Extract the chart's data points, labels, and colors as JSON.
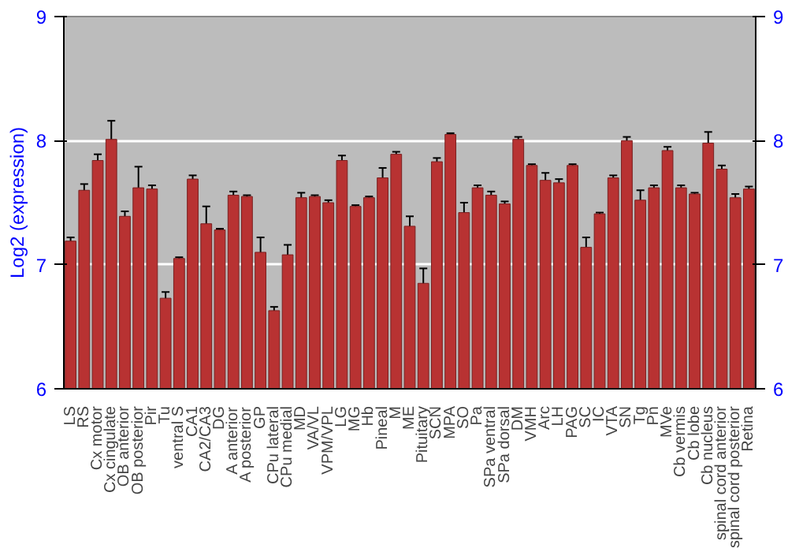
{
  "chart_data": {
    "type": "bar",
    "ylabel": "Log2 (expression)",
    "categories": [
      "LS",
      "RS",
      "Cx motor",
      "Cx cingulate",
      "OB anterior",
      "OB posterior",
      "Pir",
      "Tu",
      "ventral S",
      "CA1",
      "CA2/CA3",
      "DG",
      "A anterior",
      "A posterior",
      "GP",
      "CPu lateral",
      "CPu medial",
      "MD",
      "VA/VL",
      "VPM/VPL",
      "LG",
      "MG",
      "Hb",
      "Pineal",
      "M",
      "ME",
      "Pituitary",
      "SCN",
      "MPA",
      "SO",
      "Pa",
      "SPa ventral",
      "SPa dorsal",
      "DM",
      "VMH",
      "Arc",
      "LH",
      "PAG",
      "SC",
      "IC",
      "VTA",
      "SN",
      "Tg",
      "Pn",
      "MVe",
      "Cb vermis",
      "Cb lobe",
      "Cb nucleus",
      "spinal cord anterior",
      "spinal cord posterior",
      "Retina"
    ],
    "values": [
      7.19,
      7.6,
      7.84,
      8.01,
      7.39,
      7.62,
      7.61,
      6.73,
      7.05,
      7.69,
      7.33,
      7.28,
      7.56,
      7.55,
      7.1,
      6.63,
      7.08,
      7.54,
      7.55,
      7.5,
      7.84,
      7.47,
      7.54,
      7.7,
      7.89,
      7.31,
      6.85,
      7.83,
      8.05,
      7.42,
      7.62,
      7.56,
      7.49,
      8.01,
      7.8,
      7.68,
      7.66,
      7.8,
      7.14,
      7.41,
      7.7,
      8.0,
      7.52,
      7.62,
      7.92,
      7.62,
      7.57,
      7.98,
      7.77,
      7.54,
      7.61
    ],
    "errors": [
      0.03,
      0.05,
      0.05,
      0.15,
      0.04,
      0.17,
      0.03,
      0.05,
      0.01,
      0.03,
      0.14,
      0.01,
      0.03,
      0.01,
      0.12,
      0.03,
      0.08,
      0.04,
      0.01,
      0.02,
      0.04,
      0.01,
      0.01,
      0.08,
      0.02,
      0.08,
      0.12,
      0.03,
      0.01,
      0.08,
      0.02,
      0.03,
      0.02,
      0.02,
      0.01,
      0.06,
      0.03,
      0.01,
      0.08,
      0.01,
      0.02,
      0.03,
      0.08,
      0.02,
      0.03,
      0.02,
      0.01,
      0.09,
      0.03,
      0.03,
      0.02
    ],
    "color": "#b83232",
    "ylim": [
      6,
      9
    ],
    "yticks": [
      6,
      7,
      8,
      9
    ],
    "y2lim": [
      6,
      9
    ],
    "y2ticks": [
      6,
      7,
      8,
      9
    ],
    "grid": "y"
  }
}
